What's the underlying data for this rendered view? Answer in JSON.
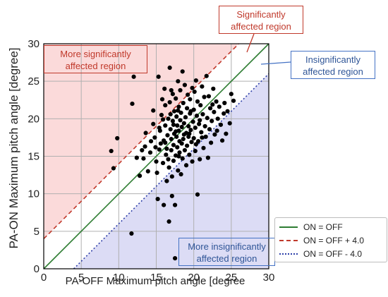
{
  "chart_data": {
    "type": "scatter",
    "xlabel": "PA-OFF Maximum pitch angle [degree",
    "ylabel": "PA-ON Maximum pitch angle [degree]",
    "xlim": [
      0,
      30
    ],
    "ylim": [
      0,
      30
    ],
    "xticks": [
      0,
      5,
      10,
      15,
      20,
      25,
      30
    ],
    "yticks": [
      0,
      5,
      10,
      15,
      20,
      25,
      30
    ],
    "grid": true,
    "legend_position": "lower-right",
    "lines": [
      {
        "label": "ON = OFF",
        "offset": 0,
        "color": "#2e7d32",
        "style": "solid"
      },
      {
        "label": "ON = OFF + 4.0",
        "offset": 4.0,
        "color": "#c0392b",
        "style": "dashed"
      },
      {
        "label": "ON = OFF - 4.0",
        "offset": -4.0,
        "color": "#2c3ea8",
        "style": "dotted"
      }
    ],
    "regions": {
      "above_color": "#fbdada",
      "below_color": "#dcdcf5"
    },
    "annotations": {
      "more_significant": [
        "More significantly",
        "affected region"
      ],
      "significant": [
        "Significantly",
        "affected region"
      ],
      "insignificant": [
        "Insignificantly",
        "affected region"
      ],
      "more_insignificant": [
        "More insignificantly",
        "affected region"
      ]
    },
    "points": [
      [
        9.3,
        13.4
      ],
      [
        9.0,
        15.7
      ],
      [
        9.8,
        17.4
      ],
      [
        11.7,
        4.7
      ],
      [
        11.8,
        22.0
      ],
      [
        12.0,
        25.6
      ],
      [
        12.4,
        14.8
      ],
      [
        12.8,
        12.4
      ],
      [
        13.1,
        15.8
      ],
      [
        13.5,
        16.3
      ],
      [
        13.6,
        18.1
      ],
      [
        13.9,
        13.0
      ],
      [
        14.2,
        15.5
      ],
      [
        14.6,
        21.1
      ],
      [
        14.6,
        19.3
      ],
      [
        14.8,
        17.5
      ],
      [
        14.9,
        16.2
      ],
      [
        15.0,
        14.3
      ],
      [
        15.1,
        12.8
      ],
      [
        15.2,
        9.3
      ],
      [
        15.3,
        25.6
      ],
      [
        15.4,
        15.9
      ],
      [
        15.5,
        18.4
      ],
      [
        15.6,
        16.7
      ],
      [
        15.7,
        20.5
      ],
      [
        15.8,
        22.6
      ],
      [
        15.9,
        14.1
      ],
      [
        16.0,
        17.1
      ],
      [
        16.0,
        8.5
      ],
      [
        16.1,
        24.0
      ],
      [
        16.2,
        21.8
      ],
      [
        16.2,
        19.1
      ],
      [
        16.3,
        15.2
      ],
      [
        16.4,
        16.0
      ],
      [
        16.4,
        11.7
      ],
      [
        16.5,
        17.8
      ],
      [
        16.6,
        20.0
      ],
      [
        16.7,
        6.3
      ],
      [
        16.7,
        13.5
      ],
      [
        16.8,
        26.8
      ],
      [
        16.8,
        22.2
      ],
      [
        16.9,
        18.6
      ],
      [
        17.0,
        15.8
      ],
      [
        17.0,
        17.3
      ],
      [
        17.1,
        9.7
      ],
      [
        17.1,
        12.3
      ],
      [
        17.2,
        19.7
      ],
      [
        17.2,
        23.3
      ],
      [
        17.3,
        16.5
      ],
      [
        17.3,
        14.4
      ],
      [
        17.4,
        21.0
      ],
      [
        17.4,
        18.0
      ],
      [
        17.5,
        1.4
      ],
      [
        17.5,
        8.5
      ],
      [
        17.6,
        15.1
      ],
      [
        17.6,
        22.7
      ],
      [
        17.7,
        17.6
      ],
      [
        17.7,
        20.3
      ],
      [
        17.8,
        19.1
      ],
      [
        17.8,
        16.2
      ],
      [
        17.9,
        25.0
      ],
      [
        17.9,
        13.1
      ],
      [
        18.0,
        18.4
      ],
      [
        18.0,
        21.6
      ],
      [
        18.1,
        17.0
      ],
      [
        18.1,
        15.5
      ],
      [
        18.2,
        19.8
      ],
      [
        18.2,
        23.8
      ],
      [
        18.3,
        12.6
      ],
      [
        18.3,
        20.8
      ],
      [
        18.4,
        16.7
      ],
      [
        18.4,
        18.9
      ],
      [
        18.5,
        26.3
      ],
      [
        18.5,
        14.7
      ],
      [
        18.6,
        22.1
      ],
      [
        18.6,
        17.3
      ],
      [
        18.7,
        19.4
      ],
      [
        18.8,
        15.8
      ],
      [
        18.8,
        24.5
      ],
      [
        18.9,
        20.2
      ],
      [
        19.0,
        18.1
      ],
      [
        19.0,
        13.8
      ],
      [
        19.1,
        21.4
      ],
      [
        19.1,
        16.4
      ],
      [
        19.2,
        23.2
      ],
      [
        19.3,
        19.0
      ],
      [
        19.3,
        17.6
      ],
      [
        19.4,
        15.2
      ],
      [
        19.5,
        20.7
      ],
      [
        19.5,
        22.6
      ],
      [
        19.6,
        18.5
      ],
      [
        19.7,
        16.9
      ],
      [
        19.8,
        24.1
      ],
      [
        19.8,
        14.3
      ],
      [
        19.9,
        19.6
      ],
      [
        20.0,
        21.2
      ],
      [
        20.0,
        17.4
      ],
      [
        20.1,
        23.6
      ],
      [
        20.2,
        18.8
      ],
      [
        20.2,
        15.7
      ],
      [
        20.3,
        25.1
      ],
      [
        20.4,
        20.4
      ],
      [
        20.5,
        9.9
      ],
      [
        20.5,
        22.3
      ],
      [
        20.6,
        17.0
      ],
      [
        20.7,
        19.3
      ],
      [
        20.8,
        14.6
      ],
      [
        20.9,
        21.8
      ],
      [
        21.0,
        18.2
      ],
      [
        21.1,
        24.3
      ],
      [
        21.2,
        20.6
      ],
      [
        21.3,
        16.1
      ],
      [
        21.4,
        22.9
      ],
      [
        21.5,
        19.0
      ],
      [
        21.6,
        17.6
      ],
      [
        21.7,
        25.7
      ],
      [
        21.8,
        20.1
      ],
      [
        21.9,
        14.8
      ],
      [
        22.0,
        23.0
      ],
      [
        22.1,
        18.6
      ],
      [
        22.2,
        21.4
      ],
      [
        22.3,
        16.8
      ],
      [
        22.4,
        19.7
      ],
      [
        22.6,
        24.0
      ],
      [
        22.7,
        20.9
      ],
      [
        22.8,
        17.9
      ],
      [
        23.0,
        22.3
      ],
      [
        23.1,
        18.4
      ],
      [
        23.2,
        20.0
      ],
      [
        23.4,
        21.6
      ],
      [
        23.6,
        19.2
      ],
      [
        23.8,
        17.1
      ],
      [
        24.0,
        20.7
      ],
      [
        24.1,
        22.1
      ],
      [
        24.3,
        18.0
      ],
      [
        24.5,
        21.0
      ],
      [
        24.8,
        19.4
      ],
      [
        25.0,
        23.3
      ],
      [
        25.3,
        22.4
      ],
      [
        15.4,
        18.8
      ],
      [
        16.9,
        20.6
      ],
      [
        17.6,
        18.3
      ],
      [
        18.7,
        17.9
      ],
      [
        16.2,
        16.8
      ],
      [
        17.3,
        19.2
      ],
      [
        19.4,
        18.0
      ],
      [
        15.9,
        19.9
      ],
      [
        18.0,
        15.0
      ],
      [
        20.8,
        19.8
      ],
      [
        17.9,
        21.1
      ],
      [
        16.6,
        14.6
      ],
      [
        19.6,
        21.0
      ],
      [
        21.1,
        17.5
      ],
      [
        14.3,
        17.0
      ],
      [
        13.3,
        14.7
      ],
      [
        22.5,
        21.9
      ],
      [
        20.3,
        16.6
      ],
      [
        17.0,
        23.8
      ]
    ]
  }
}
